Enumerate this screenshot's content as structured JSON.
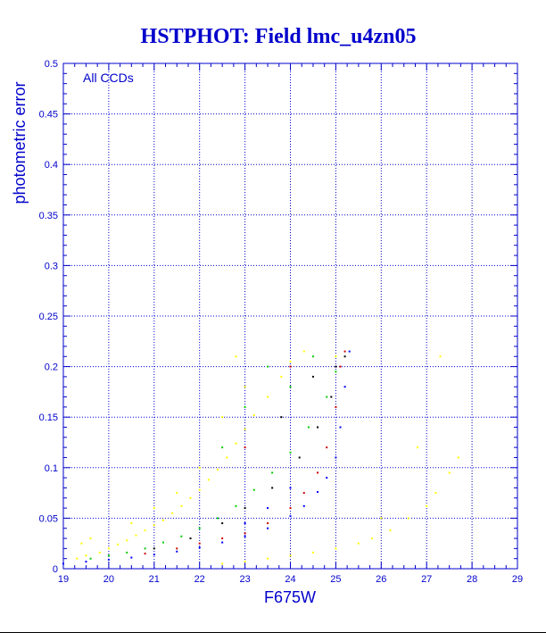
{
  "chart_data": {
    "type": "scatter",
    "title": "HSTPHOT: Field lmc_u4zn05",
    "xlabel": "F675W",
    "ylabel": "photometric error",
    "annotation": "All CCDs",
    "xlim": [
      19,
      29
    ],
    "ylim": [
      0,
      0.5
    ],
    "xticks": [
      "19",
      "20",
      "21",
      "22",
      "23",
      "24",
      "25",
      "26",
      "27",
      "28",
      "29"
    ],
    "yticks": [
      "0",
      "0.05",
      "0.1",
      "0.15",
      "0.2",
      "0.25",
      "0.3",
      "0.35",
      "0.4",
      "0.45",
      "0.5"
    ],
    "grid": true,
    "colors": {
      "title": "#0000cc",
      "axis": "#0000cc",
      "grid": "#0000cc",
      "background": "#ffffff"
    },
    "series": [
      {
        "color": "#ffff00",
        "points": [
          [
            19.3,
            0.01
          ],
          [
            19.5,
            0.013
          ],
          [
            19.8,
            0.016
          ],
          [
            20.0,
            0.02
          ],
          [
            20.2,
            0.024
          ],
          [
            20.4,
            0.028
          ],
          [
            20.6,
            0.033
          ],
          [
            20.8,
            0.038
          ],
          [
            21.0,
            0.043
          ],
          [
            21.2,
            0.048
          ],
          [
            21.4,
            0.055
          ],
          [
            21.6,
            0.062
          ],
          [
            21.8,
            0.07
          ],
          [
            22.0,
            0.078
          ],
          [
            22.2,
            0.088
          ],
          [
            22.4,
            0.098
          ],
          [
            22.6,
            0.11
          ],
          [
            22.8,
            0.124
          ],
          [
            23.0,
            0.138
          ],
          [
            23.2,
            0.152
          ],
          [
            23.5,
            0.17
          ],
          [
            23.8,
            0.19
          ],
          [
            24.0,
            0.205
          ],
          [
            22.5,
            0.15
          ],
          [
            22.0,
            0.1
          ],
          [
            21.5,
            0.075
          ],
          [
            23.0,
            0.18
          ],
          [
            22.8,
            0.21
          ],
          [
            24.3,
            0.215
          ],
          [
            25.0,
            0.21
          ],
          [
            21.0,
            0.06
          ],
          [
            20.5,
            0.045
          ],
          [
            19.6,
            0.03
          ],
          [
            19.4,
            0.025
          ],
          [
            22.5,
            0.005
          ],
          [
            23.0,
            0.007
          ],
          [
            23.5,
            0.01
          ],
          [
            24.0,
            0.013
          ],
          [
            24.5,
            0.016
          ],
          [
            25.0,
            0.02
          ],
          [
            25.5,
            0.025
          ],
          [
            25.8,
            0.03
          ],
          [
            26.2,
            0.038
          ],
          [
            26.6,
            0.05
          ],
          [
            27.0,
            0.062
          ],
          [
            27.2,
            0.075
          ],
          [
            27.5,
            0.095
          ],
          [
            27.7,
            0.11
          ],
          [
            27.3,
            0.21
          ],
          [
            26.8,
            0.12
          ],
          [
            26.0,
            0.05
          ]
        ]
      },
      {
        "color": "#00cc00",
        "points": [
          [
            19.6,
            0.01
          ],
          [
            20.0,
            0.013
          ],
          [
            20.4,
            0.016
          ],
          [
            20.8,
            0.02
          ],
          [
            21.2,
            0.026
          ],
          [
            21.6,
            0.032
          ],
          [
            22.0,
            0.04
          ],
          [
            22.4,
            0.05
          ],
          [
            22.8,
            0.062
          ],
          [
            23.2,
            0.078
          ],
          [
            23.6,
            0.095
          ],
          [
            24.0,
            0.115
          ],
          [
            24.4,
            0.14
          ],
          [
            24.8,
            0.17
          ],
          [
            25.0,
            0.195
          ],
          [
            23.5,
            0.2
          ],
          [
            23.0,
            0.16
          ],
          [
            24.0,
            0.18
          ],
          [
            22.5,
            0.12
          ],
          [
            24.5,
            0.21
          ]
        ]
      },
      {
        "color": "#cc0000",
        "points": [
          [
            20.8,
            0.015
          ],
          [
            21.5,
            0.02
          ],
          [
            22.0,
            0.025
          ],
          [
            22.5,
            0.03
          ],
          [
            23.0,
            0.035
          ],
          [
            23.5,
            0.045
          ],
          [
            24.0,
            0.06
          ],
          [
            24.3,
            0.075
          ],
          [
            24.6,
            0.095
          ],
          [
            24.8,
            0.12
          ],
          [
            25.0,
            0.16
          ],
          [
            25.1,
            0.2
          ],
          [
            25.2,
            0.215
          ],
          [
            24.0,
            0.2
          ],
          [
            23.0,
            0.12
          ]
        ]
      },
      {
        "color": "#000000",
        "points": [
          [
            21.0,
            0.02
          ],
          [
            21.8,
            0.03
          ],
          [
            22.5,
            0.045
          ],
          [
            23.0,
            0.06
          ],
          [
            23.6,
            0.08
          ],
          [
            24.2,
            0.11
          ],
          [
            24.6,
            0.14
          ],
          [
            24.9,
            0.17
          ],
          [
            25.0,
            0.2
          ],
          [
            25.2,
            0.21
          ],
          [
            24.5,
            0.19
          ],
          [
            23.8,
            0.15
          ]
        ]
      },
      {
        "color": "#0000ff",
        "points": [
          [
            19.0,
            0.005
          ],
          [
            19.5,
            0.007
          ],
          [
            20.0,
            0.009
          ],
          [
            20.5,
            0.011
          ],
          [
            21.0,
            0.014
          ],
          [
            21.5,
            0.017
          ],
          [
            22.0,
            0.021
          ],
          [
            22.5,
            0.026
          ],
          [
            23.0,
            0.032
          ],
          [
            23.5,
            0.04
          ],
          [
            24.0,
            0.052
          ],
          [
            24.3,
            0.062
          ],
          [
            24.6,
            0.076
          ],
          [
            24.8,
            0.09
          ],
          [
            25.0,
            0.11
          ],
          [
            25.1,
            0.14
          ],
          [
            25.2,
            0.18
          ],
          [
            25.3,
            0.215
          ],
          [
            24.0,
            0.08
          ],
          [
            23.5,
            0.06
          ],
          [
            23.0,
            0.045
          ]
        ]
      }
    ]
  }
}
